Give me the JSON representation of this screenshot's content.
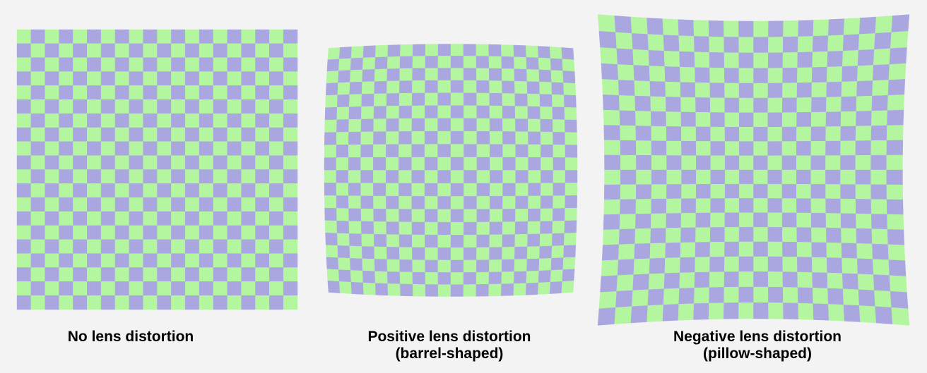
{
  "colors": {
    "light": "#b4f59f",
    "dark": "#aaa6e0",
    "background": "#f3f3f3"
  },
  "grid_squares": 20,
  "panels": [
    {
      "distortion": "none",
      "label_lines": [
        "No lens distortion"
      ]
    },
    {
      "distortion": "barrel",
      "label_lines": [
        "Positive lens distortion",
        "(barrel-shaped)"
      ]
    },
    {
      "distortion": "pillow",
      "label_lines": [
        "Negative lens distortion",
        "(pillow-shaped)"
      ]
    }
  ]
}
